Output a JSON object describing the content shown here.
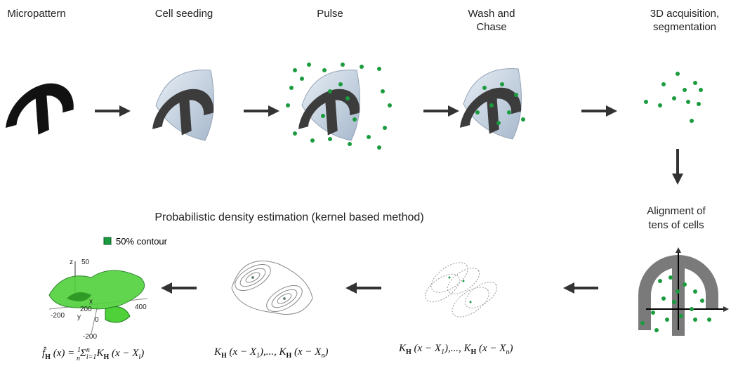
{
  "steps": [
    [
      "Micropattern"
    ],
    [
      "Cell seeding"
    ],
    [
      "Pulse"
    ],
    [
      "Wash and",
      "Chase"
    ],
    [
      "3D acquisition,",
      "segmentation"
    ]
  ],
  "alignment": [
    "Alignment of",
    "tens of cells"
  ],
  "density_title": "Probabilistic density estimation (kernel based method)",
  "legend": "50% contour",
  "plot_axes": {
    "z": "z",
    "z_tick": "50",
    "x": "x",
    "x_tick": "200",
    "y": "y",
    "x_end": "400",
    "left": "-200",
    "zero": "0",
    "bottom": "-200"
  },
  "formulas": [
    [
      "f̂",
      "H",
      " (x) = ",
      "1",
      "n",
      "Σ",
      "n",
      "i=1",
      "K",
      "H",
      " (x − X",
      "i",
      ")"
    ],
    [
      "K",
      "H",
      " (x − X",
      "1",
      "),..., ",
      "K",
      "H",
      " (x − X",
      "n",
      ")"
    ],
    [
      "K",
      "H",
      " (x − X",
      "1",
      "),..., ",
      "K",
      "H",
      " (x − X",
      "n",
      ")"
    ]
  ]
}
